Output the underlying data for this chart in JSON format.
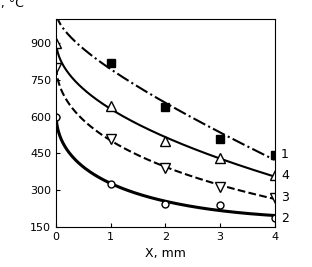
{
  "xlabel": "X, mm",
  "ylabel": "T, °C",
  "xlim": [
    0,
    4
  ],
  "ylim": [
    150,
    1000
  ],
  "yticks": [
    150,
    300,
    450,
    600,
    750,
    900
  ],
  "xticks": [
    0,
    1,
    2,
    3,
    4
  ],
  "series": [
    {
      "label": "1",
      "x": [
        0,
        1,
        2,
        3,
        4
      ],
      "y": [
        1020,
        820,
        640,
        510,
        445
      ],
      "linestyle": "-.",
      "linewidth": 1.5,
      "marker": "s",
      "markerfacecolor": "black",
      "markeredgecolor": "black",
      "markersize": 6,
      "color": "black"
    },
    {
      "label": "2",
      "x": [
        0,
        1,
        2,
        3,
        4
      ],
      "y": [
        600,
        325,
        245,
        240,
        185
      ],
      "linestyle": "-",
      "linewidth": 2.2,
      "marker": "o",
      "markerfacecolor": "white",
      "markeredgecolor": "black",
      "markersize": 5,
      "color": "black"
    },
    {
      "label": "3",
      "x": [
        0,
        1,
        2,
        3,
        4
      ],
      "y": [
        800,
        510,
        390,
        315,
        270
      ],
      "linestyle": "--",
      "linewidth": 1.5,
      "marker": "v",
      "markerfacecolor": "white",
      "markeredgecolor": "black",
      "markersize": 7,
      "color": "black"
    },
    {
      "label": "4",
      "x": [
        0,
        1,
        2,
        3,
        4
      ],
      "y": [
        900,
        645,
        500,
        430,
        360
      ],
      "linestyle": "-",
      "linewidth": 1.5,
      "marker": "^",
      "markerfacecolor": "white",
      "markeredgecolor": "black",
      "markersize": 7,
      "color": "black"
    }
  ]
}
